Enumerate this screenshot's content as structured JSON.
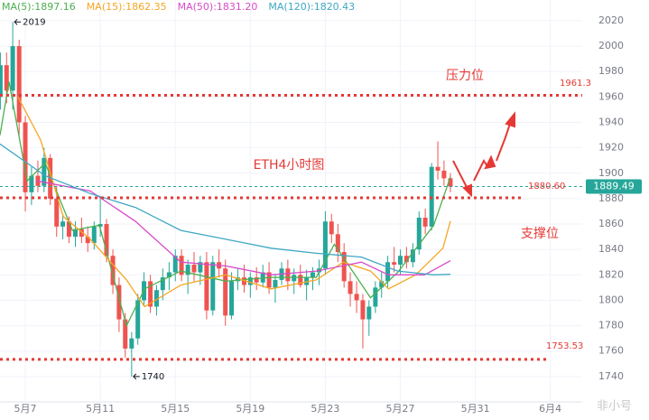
{
  "chart_data": {
    "type": "candlestick",
    "title": "ETH4小时图",
    "xlim": [
      5.65,
      36.7
    ],
    "ylim": [
      1720,
      2036.3
    ],
    "xticks": [
      {
        "value": 7,
        "label": "5月7"
      },
      {
        "value": 11,
        "label": "5月11"
      },
      {
        "value": 15,
        "label": "5月15"
      },
      {
        "value": 19,
        "label": "5月19"
      },
      {
        "value": 23,
        "label": "5月23"
      },
      {
        "value": 27,
        "label": "5月27"
      },
      {
        "value": 31,
        "label": "5月31"
      },
      {
        "value": 35,
        "label": "6月4"
      }
    ],
    "yticks": [
      1740,
      1760,
      1780,
      1800,
      1820,
      1840,
      1860,
      1880,
      1900,
      1920,
      1940,
      1960,
      1980,
      2000,
      2020
    ],
    "grid": true,
    "up_color": "#26a69a",
    "down_color": "#ef5350",
    "candles": {
      "x": [
        5.67,
        6,
        6.33,
        6.67,
        7,
        7.33,
        7.67,
        8,
        8.33,
        8.67,
        9,
        9.33,
        9.67,
        10,
        10.33,
        10.67,
        11,
        11.33,
        11.67,
        12,
        12.33,
        12.67,
        13,
        13.33,
        13.67,
        14,
        14.33,
        14.67,
        15,
        15.33,
        15.67,
        16,
        16.33,
        16.67,
        17,
        17.33,
        17.67,
        18,
        18.33,
        18.67,
        19,
        19.33,
        19.67,
        20,
        20.33,
        20.67,
        21,
        21.33,
        21.67,
        22,
        22.33,
        22.67,
        23,
        23.33,
        23.67,
        24,
        24.33,
        24.67,
        25,
        25.33,
        25.67,
        26,
        26.33,
        26.67,
        27,
        27.33,
        27.67,
        28,
        28.33,
        28.67,
        29,
        29.33,
        29.67
      ],
      "ohlc": [
        [
          1960,
          1995,
          1950,
          1985
        ],
        [
          1985,
          1995,
          1955,
          1965
        ],
        [
          1965,
          2019,
          1950,
          2000
        ],
        [
          2000,
          2005,
          1930,
          1940
        ],
        [
          1940,
          1945,
          1870,
          1885
        ],
        [
          1885,
          1905,
          1875,
          1898
        ],
        [
          1898,
          1910,
          1885,
          1890
        ],
        [
          1890,
          1920,
          1885,
          1912
        ],
        [
          1912,
          1915,
          1875,
          1880
        ],
        [
          1880,
          1890,
          1850,
          1858
        ],
        [
          1858,
          1868,
          1848,
          1862
        ],
        [
          1862,
          1866,
          1845,
          1850
        ],
        [
          1850,
          1862,
          1842,
          1856
        ],
        [
          1856,
          1865,
          1845,
          1850
        ],
        [
          1850,
          1858,
          1838,
          1845
        ],
        [
          1845,
          1862,
          1840,
          1858
        ],
        [
          1858,
          1882,
          1850,
          1860
        ],
        [
          1860,
          1864,
          1830,
          1835
        ],
        [
          1835,
          1840,
          1805,
          1812
        ],
        [
          1812,
          1818,
          1775,
          1785
        ],
        [
          1785,
          1790,
          1755,
          1762
        ],
        [
          1762,
          1775,
          1740,
          1770
        ],
        [
          1770,
          1805,
          1765,
          1800
        ],
        [
          1800,
          1822,
          1795,
          1815
        ],
        [
          1815,
          1820,
          1790,
          1795
        ],
        [
          1795,
          1812,
          1788,
          1808
        ],
        [
          1808,
          1825,
          1800,
          1818
        ],
        [
          1818,
          1830,
          1808,
          1822
        ],
        [
          1822,
          1840,
          1815,
          1835
        ],
        [
          1835,
          1840,
          1815,
          1820
        ],
        [
          1820,
          1832,
          1805,
          1828
        ],
        [
          1828,
          1838,
          1815,
          1822
        ],
        [
          1822,
          1835,
          1812,
          1830
        ],
        [
          1830,
          1838,
          1785,
          1792
        ],
        [
          1792,
          1835,
          1788,
          1830
        ],
        [
          1830,
          1840,
          1818,
          1825
        ],
        [
          1825,
          1832,
          1780,
          1788
        ],
        [
          1788,
          1822,
          1785,
          1815
        ],
        [
          1815,
          1825,
          1808,
          1818
        ],
        [
          1818,
          1828,
          1806,
          1812
        ],
        [
          1812,
          1822,
          1802,
          1818
        ],
        [
          1818,
          1826,
          1808,
          1814
        ],
        [
          1814,
          1828,
          1810,
          1822
        ],
        [
          1822,
          1830,
          1805,
          1810
        ],
        [
          1810,
          1820,
          1798,
          1816
        ],
        [
          1816,
          1830,
          1812,
          1825
        ],
        [
          1825,
          1832,
          1808,
          1815
        ],
        [
          1815,
          1825,
          1805,
          1820
        ],
        [
          1820,
          1828,
          1810,
          1812
        ],
        [
          1812,
          1824,
          1800,
          1818
        ],
        [
          1818,
          1826,
          1808,
          1822
        ],
        [
          1822,
          1832,
          1812,
          1825
        ],
        [
          1825,
          1870,
          1820,
          1862
        ],
        [
          1862,
          1868,
          1845,
          1852
        ],
        [
          1852,
          1860,
          1830,
          1838
        ],
        [
          1838,
          1845,
          1810,
          1815
        ],
        [
          1815,
          1822,
          1795,
          1805
        ],
        [
          1805,
          1815,
          1790,
          1800
        ],
        [
          1800,
          1805,
          1762,
          1785
        ],
        [
          1785,
          1800,
          1772,
          1795
        ],
        [
          1795,
          1815,
          1790,
          1810
        ],
        [
          1810,
          1822,
          1802,
          1815
        ],
        [
          1815,
          1835,
          1810,
          1830
        ],
        [
          1830,
          1842,
          1822,
          1828
        ],
        [
          1828,
          1840,
          1820,
          1835
        ],
        [
          1835,
          1842,
          1825,
          1830
        ],
        [
          1830,
          1845,
          1826,
          1840
        ],
        [
          1840,
          1870,
          1836,
          1865
        ],
        [
          1865,
          1872,
          1852,
          1858
        ],
        [
          1858,
          1908,
          1855,
          1905
        ],
        [
          1905,
          1925,
          1895,
          1902
        ],
        [
          1902,
          1910,
          1890,
          1896
        ],
        [
          1896,
          1900,
          1885,
          1889.49
        ]
      ]
    },
    "series": [
      {
        "name": "MA(5):1897.16",
        "color": "#4caf50",
        "x": [
          5.65,
          6.13,
          7.1,
          8.06,
          9.51,
          10.95,
          12.4,
          13.36,
          15.29,
          17.7,
          20.11,
          22.52,
          23.48,
          25.41,
          26.86,
          28.78,
          29.67
        ],
        "values": [
          1930,
          1972,
          1894,
          1908,
          1855,
          1859,
          1780,
          1809,
          1823,
          1815,
          1818,
          1818,
          1844,
          1802,
          1822,
          1859,
          1897.16
        ]
      },
      {
        "name": "MA(15):1862.35",
        "color": "#f5a623",
        "x": [
          6.61,
          7.82,
          9.02,
          10.47,
          12.4,
          13.36,
          15.29,
          17.7,
          20.11,
          22.52,
          23.96,
          25.41,
          26.37,
          27.82,
          29.27,
          29.67
        ],
        "values": [
          1960,
          1926,
          1866,
          1848,
          1816,
          1795,
          1812,
          1820,
          1809,
          1816,
          1830,
          1823,
          1809,
          1820,
          1841,
          1862.35
        ]
      },
      {
        "name": "MA(50):1831.20",
        "color": "#d84bc9",
        "x": [
          7.58,
          10.47,
          12.88,
          15.29,
          17.7,
          20.11,
          22.52,
          24.93,
          26.37,
          28.3,
          29.67
        ],
        "values": [
          1894,
          1886,
          1862,
          1830,
          1827,
          1820,
          1823,
          1830,
          1820,
          1820,
          1831.2
        ]
      },
      {
        "name": "MA(120):1820.43",
        "color": "#3fa7c4",
        "x": [
          5.65,
          8.06,
          10.47,
          12.88,
          15.29,
          17.7,
          20.11,
          22.52,
          24.93,
          26.86,
          28.78,
          29.67
        ],
        "values": [
          1923,
          1898,
          1884,
          1873,
          1855,
          1848,
          1841,
          1837,
          1834,
          1823,
          1820,
          1820.43
        ]
      }
    ],
    "levels": [
      1961.3,
      {
        "value": 1880.6,
        "label": "1880.60"
      },
      1753.53
    ],
    "level_color": "#e53935",
    "last_price": 1889.49,
    "annotations": [
      {
        "x": 6.33,
        "value": 2019
      },
      {
        "x": 12.67,
        "value": 1740
      }
    ],
    "resistance_label": "压力位",
    "support_label": "支撑位",
    "watermark": "非小号"
  }
}
